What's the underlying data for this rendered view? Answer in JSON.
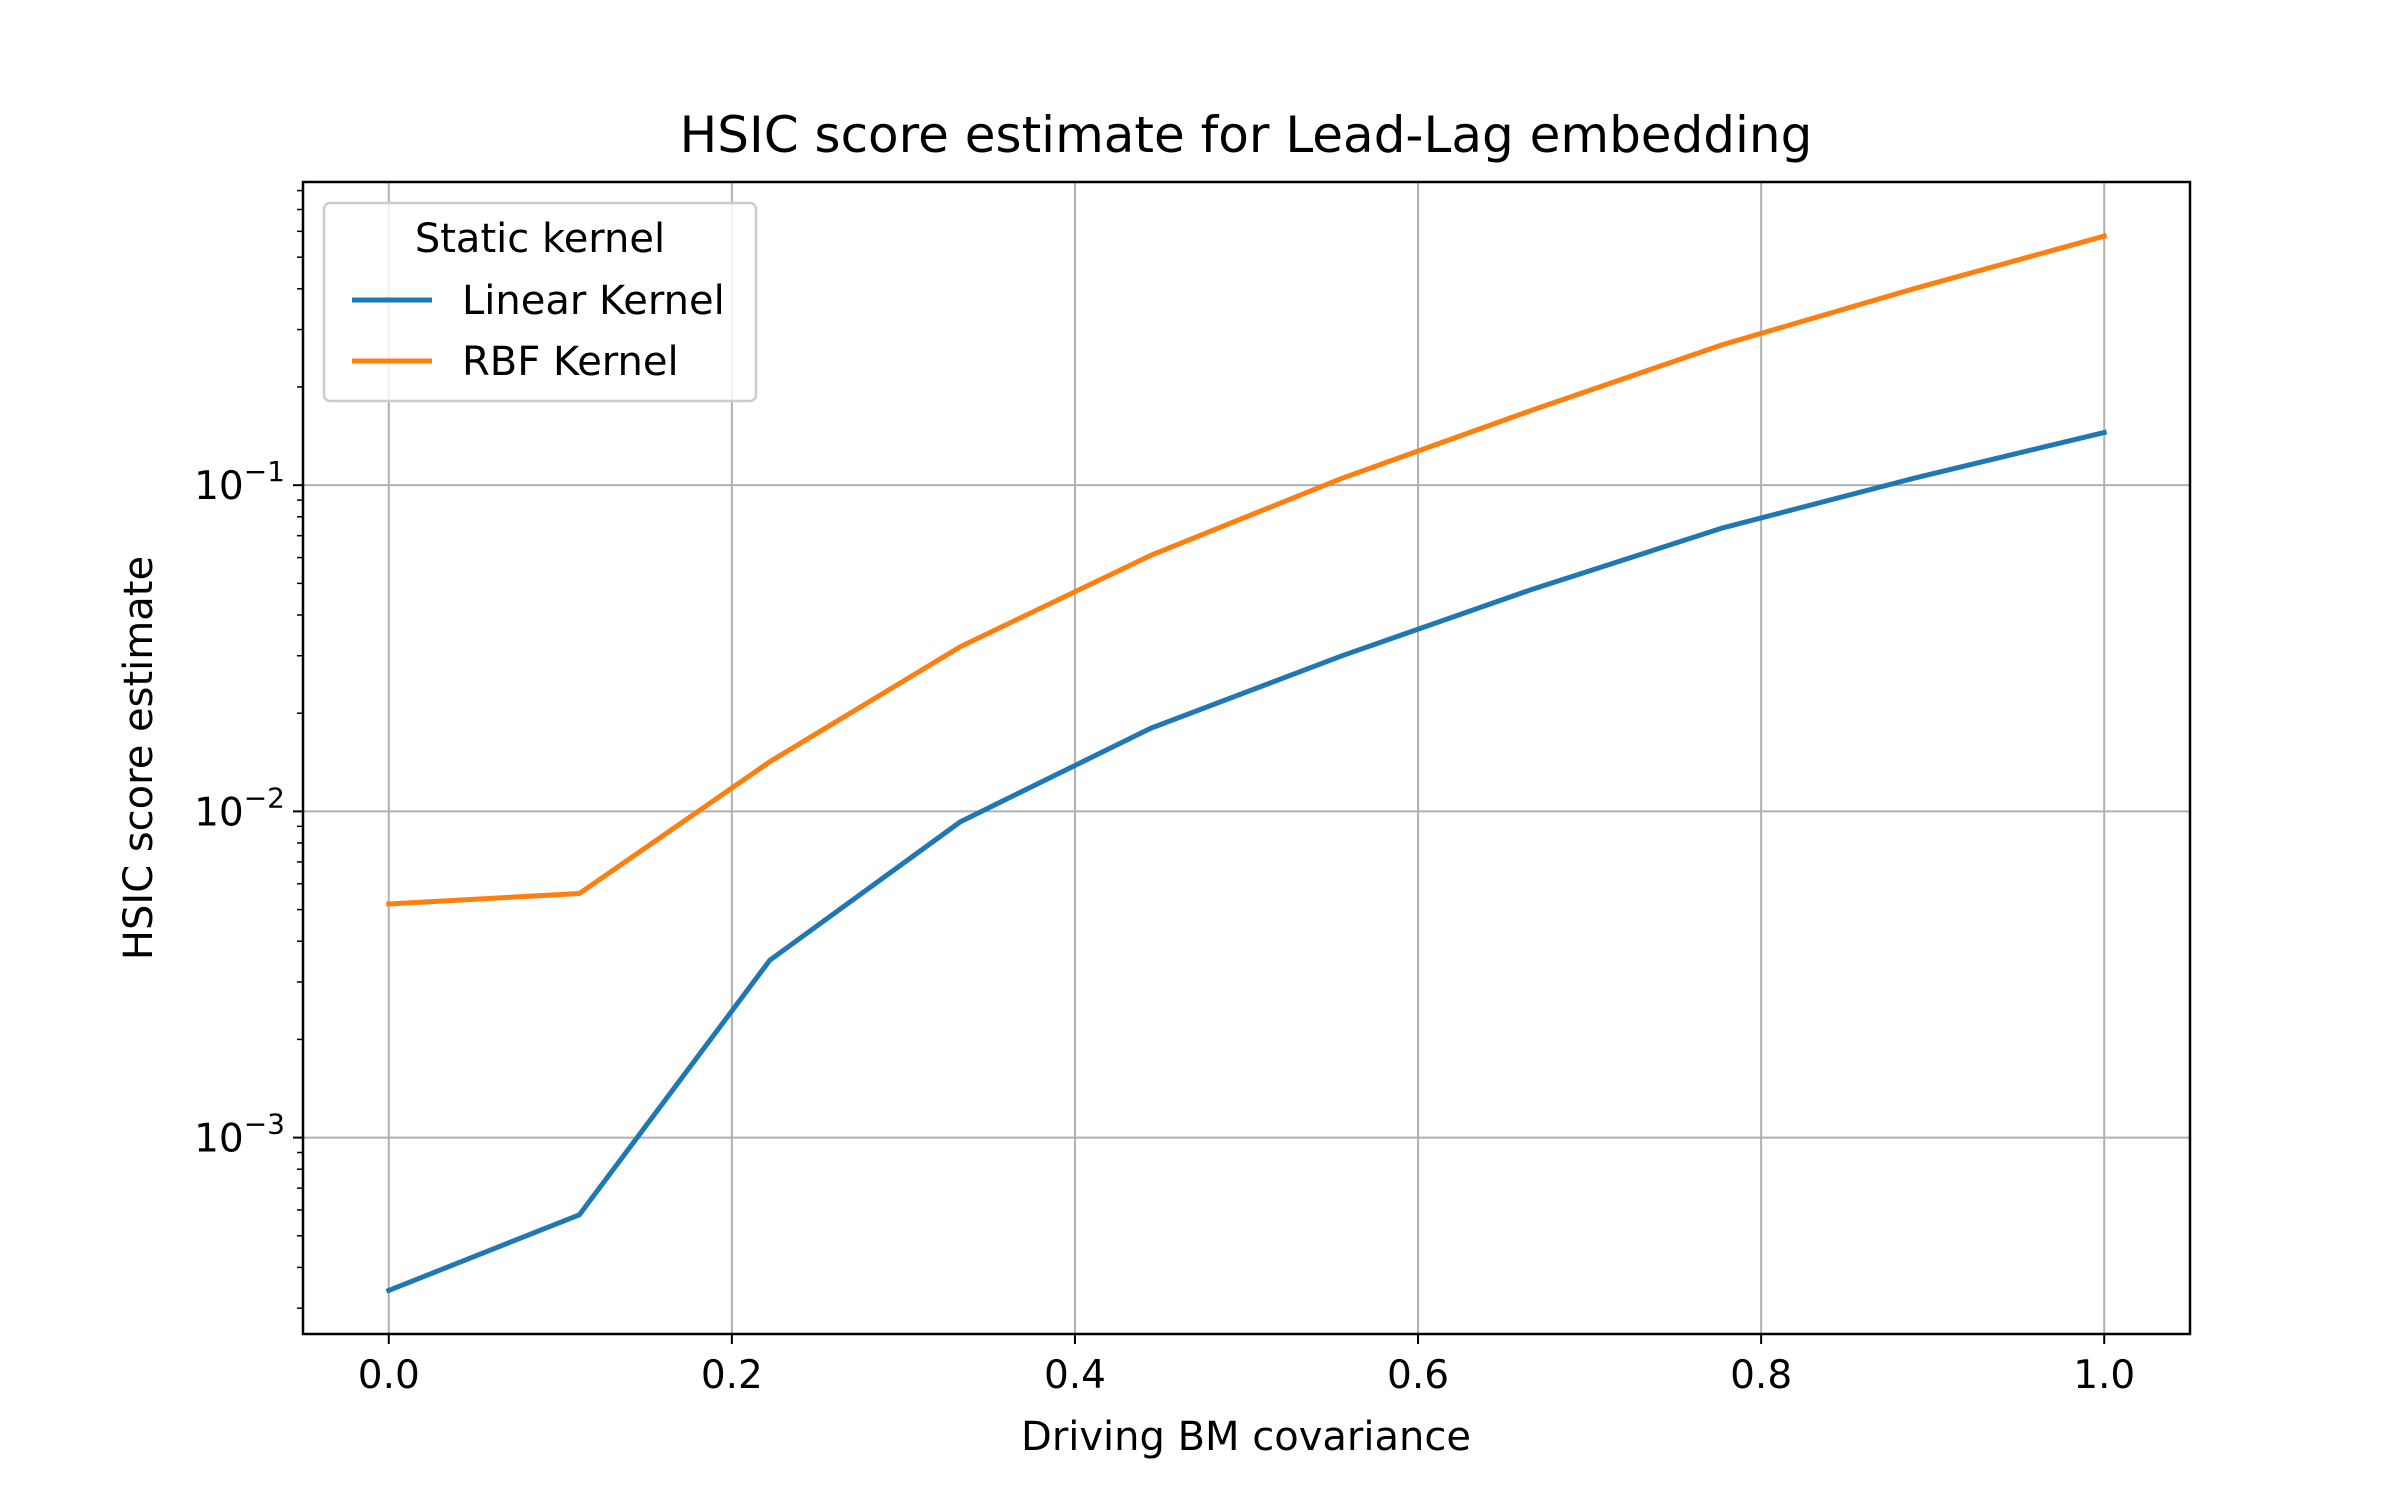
{
  "chart_data": {
    "type": "line",
    "title": "HSIC score estimate for Lead-Lag embedding",
    "xlabel": "Driving BM covariance",
    "ylabel": "HSIC score estimate",
    "xlim": [
      -0.05,
      1.05
    ],
    "ylim": [
      0.00025,
      0.85
    ],
    "yscale": "log",
    "grid": true,
    "x_ticks": [
      {
        "value": 0.0,
        "label": "0.0"
      },
      {
        "value": 0.2,
        "label": "0.2"
      },
      {
        "value": 0.4,
        "label": "0.4"
      },
      {
        "value": 0.6,
        "label": "0.6"
      },
      {
        "value": 0.8,
        "label": "0.8"
      },
      {
        "value": 1.0,
        "label": "1.0"
      }
    ],
    "y_ticks": [
      {
        "value": 0.1,
        "base": "10",
        "exp": "−1"
      },
      {
        "value": 0.01,
        "base": "10",
        "exp": "−2"
      },
      {
        "value": 0.001,
        "base": "10",
        "exp": "−3"
      }
    ],
    "legend": {
      "title": "Static kernel",
      "placement": "upper left"
    },
    "x": [
      0.0,
      0.1111,
      0.2222,
      0.3333,
      0.4444,
      0.5556,
      0.6667,
      0.7778,
      0.8889,
      1.0
    ],
    "series": [
      {
        "name": "Linear Kernel",
        "color": "#1f77b4",
        "values": [
          0.00034,
          0.00058,
          0.0035,
          0.0093,
          0.018,
          0.03,
          0.048,
          0.074,
          0.105,
          0.145
        ]
      },
      {
        "name": "RBF Kernel",
        "color": "#ff7f0e",
        "values": [
          0.0052,
          0.0056,
          0.0142,
          0.032,
          0.061,
          0.105,
          0.17,
          0.27,
          0.4,
          0.58
        ]
      }
    ]
  }
}
